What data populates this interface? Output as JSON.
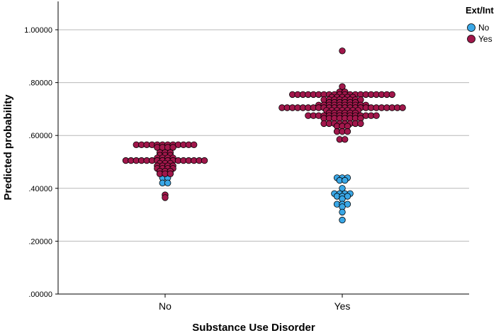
{
  "chart_data": {
    "type": "scatter",
    "subtype": "dot-plot",
    "xlabel": "Substance Use Disorder",
    "ylabel": "Predicted probability",
    "categories": [
      "No",
      "Yes"
    ],
    "ylim": [
      0,
      1.1
    ],
    "yticks": [
      {
        "value": 0.0,
        "label": ".00000"
      },
      {
        "value": 0.2,
        "label": ".20000"
      },
      {
        "value": 0.4,
        "label": ".40000"
      },
      {
        "value": 0.6,
        "label": ".60000"
      },
      {
        "value": 0.8,
        "label": ".80000"
      },
      {
        "value": 1.0,
        "label": "1.00000"
      }
    ],
    "grid": "horizontal",
    "legend": {
      "title": "Ext/Int",
      "position": "top-right",
      "items": [
        {
          "name": "No",
          "color": "#3aa7e6"
        },
        {
          "name": "Yes",
          "color": "#a1174b"
        }
      ]
    },
    "series": [
      {
        "name": "No",
        "color": "#3aa7e6",
        "points": [
          {
            "category": "No",
            "values": [
              0.46,
              0.46,
              0.45,
              0.45,
              0.44,
              0.44,
              0.42,
              0.42
            ]
          },
          {
            "category": "Yes",
            "values": [
              0.44,
              0.44,
              0.44,
              0.43,
              0.43,
              0.4,
              0.38,
              0.38,
              0.38,
              0.38,
              0.37,
              0.37,
              0.37,
              0.36,
              0.34,
              0.34,
              0.34,
              0.33,
              0.31,
              0.28
            ]
          }
        ]
      },
      {
        "name": "Yes",
        "color": "#a1174b",
        "points": [
          {
            "category": "No",
            "values": [
              0.565,
              0.565,
              0.565,
              0.565,
              0.565,
              0.565,
              0.565,
              0.565,
              0.565,
              0.565,
              0.565,
              0.565,
              0.555,
              0.555,
              0.555,
              0.555,
              0.535,
              0.535,
              0.535,
              0.525,
              0.525,
              0.525,
              0.515,
              0.515,
              0.515,
              0.515,
              0.505,
              0.505,
              0.505,
              0.505,
              0.505,
              0.505,
              0.505,
              0.505,
              0.505,
              0.505,
              0.505,
              0.505,
              0.505,
              0.505,
              0.505,
              0.505,
              0.495,
              0.495,
              0.495,
              0.485,
              0.485,
              0.485,
              0.485,
              0.475,
              0.475,
              0.475,
              0.475,
              0.465,
              0.465,
              0.465,
              0.455,
              0.455,
              0.455,
              0.375,
              0.365
            ]
          },
          {
            "category": "Yes",
            "values": [
              0.92,
              0.785,
              0.765,
              0.765,
              0.755,
              0.755,
              0.755,
              0.755,
              0.755,
              0.755,
              0.755,
              0.755,
              0.755,
              0.755,
              0.755,
              0.755,
              0.755,
              0.755,
              0.755,
              0.755,
              0.755,
              0.755,
              0.755,
              0.755,
              0.745,
              0.745,
              0.745,
              0.745,
              0.745,
              0.735,
              0.735,
              0.735,
              0.735,
              0.735,
              0.735,
              0.735,
              0.735,
              0.725,
              0.725,
              0.725,
              0.725,
              0.725,
              0.725,
              0.715,
              0.715,
              0.715,
              0.715,
              0.715,
              0.715,
              0.715,
              0.715,
              0.715,
              0.715,
              0.705,
              0.705,
              0.705,
              0.705,
              0.705,
              0.705,
              0.705,
              0.705,
              0.705,
              0.705,
              0.705,
              0.705,
              0.705,
              0.705,
              0.705,
              0.705,
              0.705,
              0.705,
              0.705,
              0.705,
              0.705,
              0.705,
              0.705,
              0.705,
              0.695,
              0.695,
              0.695,
              0.695,
              0.695,
              0.695,
              0.695,
              0.685,
              0.685,
              0.685,
              0.685,
              0.685,
              0.685,
              0.675,
              0.675,
              0.675,
              0.675,
              0.675,
              0.675,
              0.675,
              0.675,
              0.675,
              0.675,
              0.675,
              0.675,
              0.675,
              0.675,
              0.665,
              0.665,
              0.665,
              0.665,
              0.665,
              0.665,
              0.665,
              0.665,
              0.645,
              0.645,
              0.645,
              0.645,
              0.645,
              0.645,
              0.645,
              0.645,
              0.635,
              0.635,
              0.635,
              0.615,
              0.615,
              0.615,
              0.585,
              0.585
            ]
          }
        ]
      }
    ]
  }
}
